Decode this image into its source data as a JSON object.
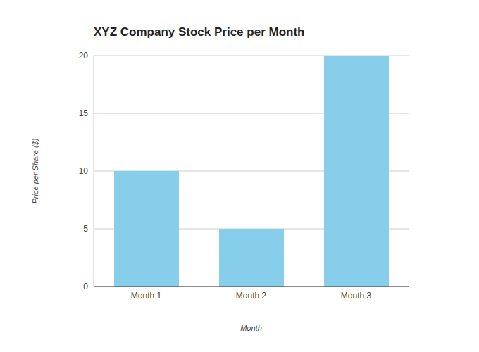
{
  "chart_data": {
    "type": "bar",
    "title": "XYZ Company Stock Price per Month",
    "x_label": "Month",
    "y_label": "Price per Share ($)",
    "categories": [
      "Month 1",
      "Month 2",
      "Month 3"
    ],
    "values": [
      10,
      5,
      20
    ],
    "color": "#87ceeb",
    "ylim": [
      0,
      20
    ],
    "yticks": [
      0,
      5,
      10,
      15,
      20
    ],
    "grid": true
  }
}
